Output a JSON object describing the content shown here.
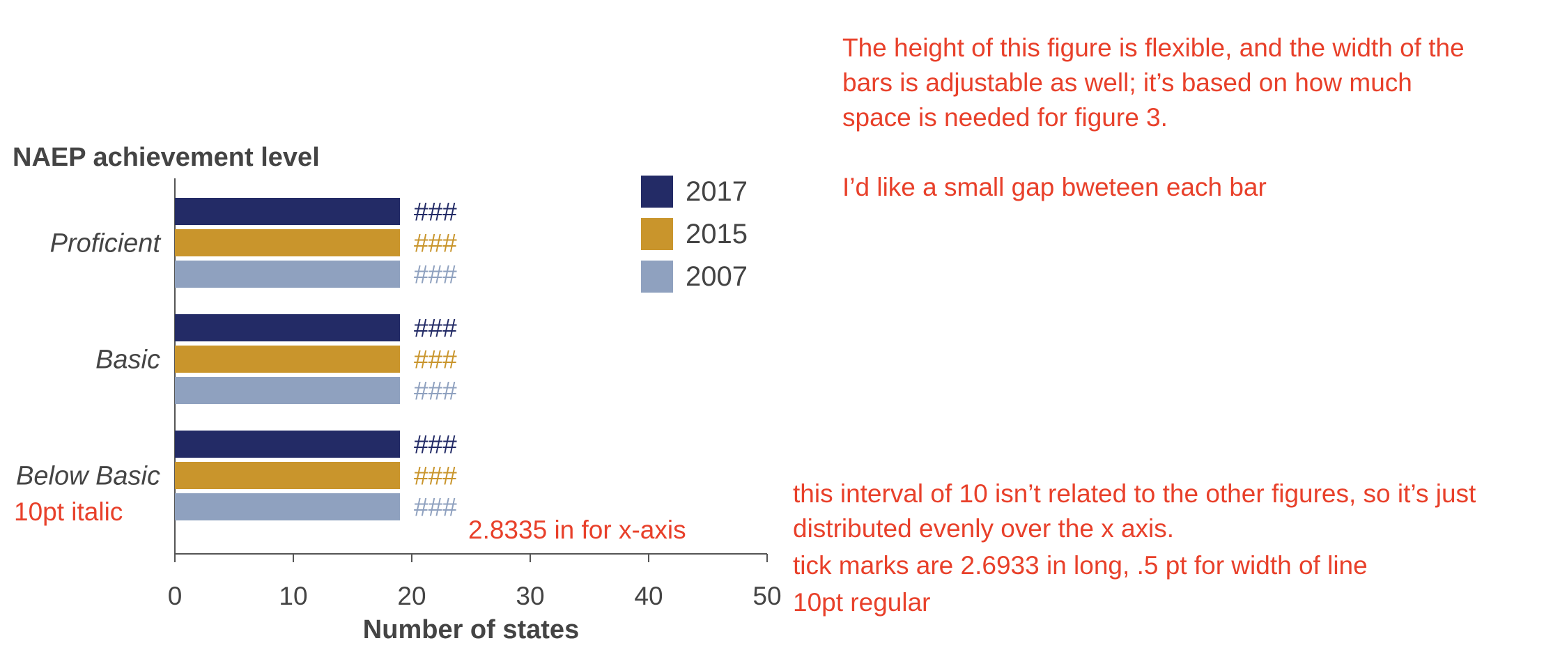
{
  "chart_data": {
    "type": "bar",
    "orientation": "horizontal",
    "title": "NAEP achievement level",
    "xlabel": "Number of states",
    "ylabel": "",
    "xlim": [
      0,
      50
    ],
    "x_ticks": [
      "0",
      "10",
      "20",
      "30",
      "40",
      "50"
    ],
    "categories": [
      "Proficient",
      "Basic",
      "Below Basic"
    ],
    "series": [
      {
        "name": "2017",
        "color": "#232b66",
        "values": [
          19,
          19,
          19
        ],
        "labels": [
          "###",
          "###",
          "###"
        ]
      },
      {
        "name": "2015",
        "color": "#c9952c",
        "values": [
          19,
          19,
          19
        ],
        "labels": [
          "###",
          "###",
          "###"
        ]
      },
      {
        "name": "2007",
        "color": "#8fa1bf",
        "values": [
          19,
          19,
          19
        ],
        "labels": [
          "###",
          "###",
          "###"
        ]
      }
    ],
    "legend_position": "top-right",
    "grid": false,
    "text_color": "#444444",
    "axis_color": "#555555"
  },
  "annotations": {
    "color": "#e8402a",
    "top_note": "The height of this figure is flexible, and the width of the\nbars is adjustable as well; it’s based on how much\nspace is needed for figure 3.",
    "gap_note": "I’d like a small gap bweteen each bar",
    "italic_note": "10pt italic",
    "xaxis_note": "2.8335 in for x-axis",
    "interval_note": "this interval of 10 isn’t related to the other figures, so it’s just\ndistributed evenly over the x axis.",
    "ticks_note": "tick marks are 2.6933 in long, .5 pt for width of line",
    "regular_note": "10pt regular"
  }
}
